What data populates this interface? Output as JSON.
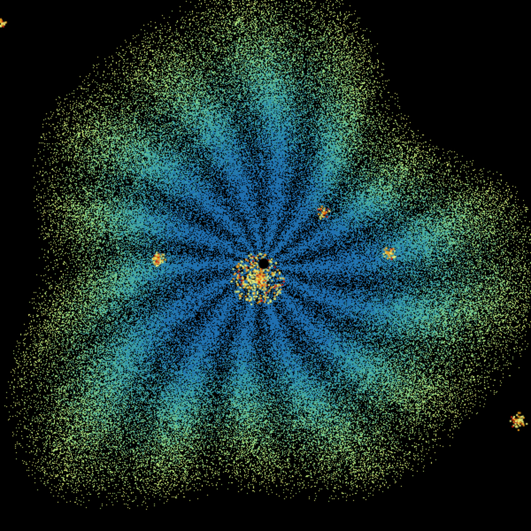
{
  "image": {
    "kind": "radar-scan",
    "background_color": "#000000",
    "palette": {
      "inner": "#1f6fb0",
      "mid": "#3aa6a8",
      "outer": "#9fdc7a",
      "bright": "#e8f07a",
      "hot": "#f0a020",
      "extreme": "#c82010"
    }
  }
}
